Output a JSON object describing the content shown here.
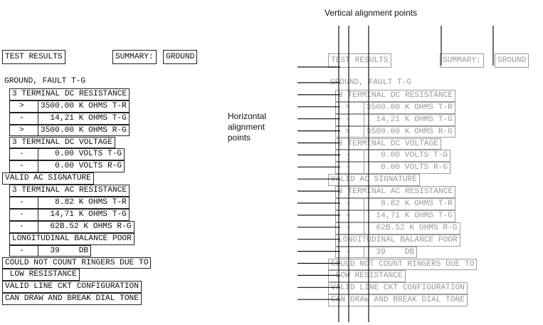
{
  "labels": {
    "vertical": "Vertical alignment points",
    "horizontal": "Horizontal\nalignment\npoints"
  },
  "header": {
    "test_results": "TEST RESULTS",
    "summary": "SUMMARY:",
    "ground": "GROUND"
  },
  "rows": [
    {
      "text": "GROUND, FAULT T-G"
    },
    {
      "text": "3 TERMINAL DC RESISTANCE"
    },
    {
      "prefix": ">",
      "text": "3500.00 K OHMS T-R"
    },
    {
      "prefix": "-",
      "text": "  14,21 K OHMS T-G"
    },
    {
      "prefix": ">",
      "text": "3500.00 K OHMS R-G"
    },
    {
      "text": "3 TERMINAL DC VOLTAGE"
    },
    {
      "prefix": "-",
      "text": "   0.00 VOLTS T-G"
    },
    {
      "prefix": "-",
      "text": "   0.00 VOLTS R-G"
    },
    {
      "text": "VALID AC SIGNATURE"
    },
    {
      "text": "3 TERMINAL AC RESISTANCE"
    },
    {
      "prefix": "-",
      "text": "   8.82 K OHMS T-R"
    },
    {
      "prefix": "-",
      "text": "  14,71 K OHMS T-G"
    },
    {
      "prefix": "-",
      "text": "  62B.52 K OHMS R-G"
    },
    {
      "text": "LONGITUDINAL BALANCE POOR"
    },
    {
      "prefix": "-",
      "text": "  39    DB"
    },
    {
      "text": "COULD NOT COUNT RINGERS DUE TO"
    },
    {
      "text": " LOW RESISTANCE"
    },
    {
      "text": "VALID LINE CKT CONFIGURATION"
    },
    {
      "text": "CAN DRAW AND BREAK DIAL TONE"
    }
  ]
}
